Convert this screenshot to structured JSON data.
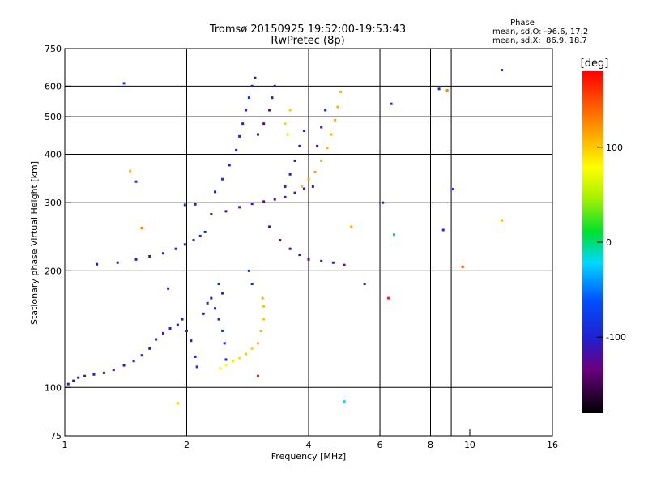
{
  "chart_data": {
    "type": "scatter",
    "title": "Tromsø 20150925 19:52:00-19:53:43",
    "subtitle": "RwPretec (8p)",
    "xlabel": "Frequency [MHz]",
    "ylabel": "Stationary phase Virtual Height [km]",
    "x_scale": "log",
    "y_scale": "log",
    "xlim": [
      1,
      16
    ],
    "ylim": [
      75,
      750
    ],
    "x_ticks": [
      1,
      2,
      4,
      6,
      8,
      10,
      16
    ],
    "y_ticks": [
      75,
      100,
      200,
      300,
      400,
      500,
      600,
      750
    ],
    "x_gridlines": [
      2,
      4,
      6,
      8,
      9
    ],
    "y_gridlines": [
      100,
      200,
      300,
      400,
      500,
      600
    ],
    "phase_stats": {
      "heading": "Phase",
      "line_o": "mean, sd,O: -96.6, 17.2",
      "line_x": "mean, sd,X:  86.9, 18.7"
    },
    "colorbar": {
      "label": "[deg]",
      "ticks": [
        100,
        0,
        -100
      ],
      "range": [
        -180,
        180
      ]
    },
    "series": [
      {
        "name": "",
        "points": [
          [
            1.02,
            102,
            -100
          ],
          [
            1.05,
            104,
            -105
          ],
          [
            1.08,
            106,
            -110
          ],
          [
            1.12,
            107,
            -100
          ],
          [
            1.18,
            108,
            -95
          ],
          [
            1.25,
            109,
            -105
          ],
          [
            1.32,
            111,
            -100
          ],
          [
            1.4,
            114,
            -110
          ],
          [
            1.48,
            117,
            -100
          ],
          [
            1.55,
            121,
            -95
          ],
          [
            1.62,
            126,
            -110
          ],
          [
            1.68,
            133,
            -100
          ],
          [
            1.75,
            138,
            -105
          ],
          [
            1.82,
            142,
            -95
          ],
          [
            1.9,
            145,
            -100
          ],
          [
            1.95,
            150,
            -110
          ],
          [
            2.0,
            140,
            -90
          ],
          [
            2.05,
            132,
            -100
          ],
          [
            2.1,
            120,
            -95
          ],
          [
            2.12,
            113,
            -90
          ],
          [
            2.2,
            155,
            -100
          ],
          [
            2.25,
            165,
            -105
          ],
          [
            2.3,
            170,
            -100
          ],
          [
            2.35,
            160,
            -95
          ],
          [
            2.4,
            150,
            -90
          ],
          [
            2.45,
            140,
            -80
          ],
          [
            2.48,
            130,
            -85
          ],
          [
            2.5,
            118,
            -90
          ],
          [
            2.45,
            175,
            -95
          ],
          [
            2.4,
            185,
            -90
          ],
          [
            2.42,
            112,
            75
          ],
          [
            2.5,
            114,
            80
          ],
          [
            2.6,
            117,
            85
          ],
          [
            2.7,
            119,
            90
          ],
          [
            2.8,
            122,
            100
          ],
          [
            2.9,
            126,
            95
          ],
          [
            3.0,
            130,
            105
          ],
          [
            3.05,
            140,
            110
          ],
          [
            3.1,
            150,
            100
          ],
          [
            3.1,
            162,
            105
          ],
          [
            3.08,
            170,
            110
          ],
          [
            1.2,
            208,
            -110
          ],
          [
            1.35,
            210,
            -105
          ],
          [
            1.5,
            214,
            -100
          ],
          [
            1.62,
            218,
            -110
          ],
          [
            1.75,
            222,
            -105
          ],
          [
            1.88,
            228,
            -100
          ],
          [
            1.98,
            234,
            -95
          ],
          [
            2.08,
            240,
            -100
          ],
          [
            2.16,
            246,
            -90
          ],
          [
            2.22,
            252,
            -95
          ],
          [
            1.98,
            296,
            -95
          ],
          [
            2.1,
            297,
            -100
          ],
          [
            2.3,
            280,
            -105
          ],
          [
            2.5,
            285,
            -110
          ],
          [
            2.7,
            292,
            -115
          ],
          [
            2.9,
            298,
            -120
          ],
          [
            3.1,
            302,
            -125
          ],
          [
            3.3,
            306,
            -120
          ],
          [
            3.5,
            310,
            -115
          ],
          [
            3.7,
            318,
            -110
          ],
          [
            3.9,
            326,
            -105
          ],
          [
            4.1,
            330,
            -100
          ],
          [
            2.35,
            320,
            -90
          ],
          [
            2.45,
            345,
            -85
          ],
          [
            2.55,
            375,
            -90
          ],
          [
            2.65,
            410,
            -95
          ],
          [
            2.7,
            445,
            -100
          ],
          [
            2.75,
            480,
            -105
          ],
          [
            2.8,
            520,
            -100
          ],
          [
            2.85,
            560,
            -95
          ],
          [
            2.9,
            600,
            -100
          ],
          [
            2.95,
            630,
            -110
          ],
          [
            3.0,
            450,
            -130
          ],
          [
            3.1,
            480,
            -135
          ],
          [
            3.2,
            520,
            -130
          ],
          [
            3.25,
            560,
            -120
          ],
          [
            3.3,
            600,
            -115
          ],
          [
            3.2,
            260,
            -130
          ],
          [
            3.4,
            240,
            -135
          ],
          [
            3.6,
            228,
            -130
          ],
          [
            3.8,
            220,
            -125
          ],
          [
            4.0,
            214,
            -120
          ],
          [
            4.3,
            212,
            -115
          ],
          [
            4.6,
            210,
            -120
          ],
          [
            4.9,
            207,
            -125
          ],
          [
            3.5,
            330,
            -120
          ],
          [
            3.6,
            355,
            -115
          ],
          [
            3.7,
            385,
            -110
          ],
          [
            3.8,
            420,
            -105
          ],
          [
            3.9,
            460,
            -100
          ],
          [
            3.85,
            330,
            105
          ],
          [
            4.0,
            345,
            110
          ],
          [
            4.15,
            360,
            115
          ],
          [
            4.3,
            385,
            110
          ],
          [
            4.45,
            415,
            105
          ],
          [
            4.55,
            450,
            110
          ],
          [
            4.65,
            490,
            115
          ],
          [
            4.72,
            530,
            110
          ],
          [
            4.8,
            580,
            115
          ],
          [
            3.5,
            480,
            95
          ],
          [
            3.6,
            520,
            100
          ],
          [
            3.55,
            450,
            90
          ],
          [
            4.2,
            420,
            -110
          ],
          [
            4.3,
            470,
            -105
          ],
          [
            4.4,
            520,
            -100
          ],
          [
            2.85,
            200,
            -95
          ],
          [
            2.9,
            185,
            -90
          ],
          [
            1.45,
            362,
            110
          ],
          [
            1.5,
            340,
            -80
          ],
          [
            1.55,
            258,
            130
          ],
          [
            1.8,
            180,
            -100
          ],
          [
            1.4,
            610,
            -80
          ],
          [
            6.3,
            170,
            170
          ],
          [
            6.4,
            540,
            -90
          ],
          [
            8.4,
            590,
            -100
          ],
          [
            8.8,
            585,
            130
          ],
          [
            9.1,
            325,
            -100
          ],
          [
            12.0,
            660,
            -90
          ],
          [
            12.0,
            270,
            110
          ],
          [
            9.6,
            205,
            150
          ],
          [
            8.6,
            255,
            -90
          ],
          [
            6.5,
            248,
            -30
          ],
          [
            5.5,
            185,
            -110
          ],
          [
            4.9,
            92,
            -20
          ],
          [
            1.9,
            91,
            100
          ],
          [
            3.0,
            107,
            170
          ],
          [
            5.1,
            260,
            110
          ],
          [
            6.1,
            300,
            -110
          ]
        ]
      }
    ]
  }
}
